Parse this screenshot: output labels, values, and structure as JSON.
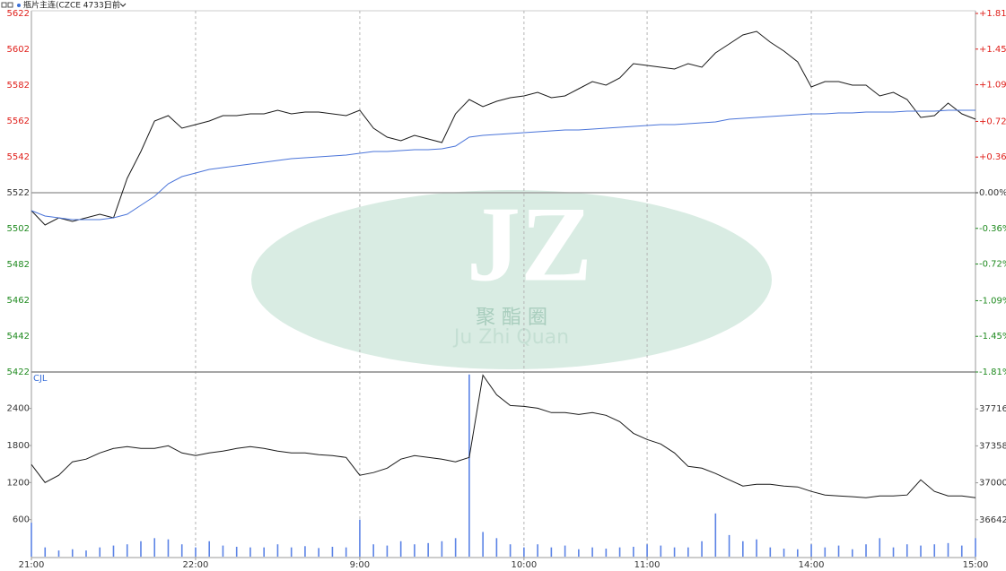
{
  "header": {
    "symbol": "瓶片主连(CZCE 4733)",
    "period": "日前"
  },
  "watermark": {
    "logo": "JZ",
    "cn": "聚 酯 圈",
    "en": "Ju Zhi Quan"
  },
  "chart_data": [
    {
      "type": "line",
      "ylim": [
        5422,
        5622
      ],
      "yticks": [
        5422,
        5442,
        5462,
        5482,
        5502,
        5522,
        5542,
        5562,
        5582,
        5602,
        5622
      ],
      "y2lim": [
        -1.81,
        1.81
      ],
      "y2ticks": [
        {
          "value": -1.81,
          "label": "-1.81%"
        },
        {
          "value": -1.45,
          "label": "-1.45%"
        },
        {
          "value": -1.09,
          "label": "-1.09%"
        },
        {
          "value": -0.72,
          "label": "-0.72%"
        },
        {
          "value": -0.36,
          "label": "-0.36%"
        },
        {
          "value": 0,
          "label": "0.00%"
        },
        {
          "value": 0.36,
          "label": "+0.36%"
        },
        {
          "value": 0.72,
          "label": "+0.72%"
        },
        {
          "value": 1.09,
          "label": "+1.09%"
        },
        {
          "value": 1.45,
          "label": "+1.45%"
        },
        {
          "value": 1.81,
          "label": "+1.81%"
        }
      ],
      "up_color": "#e0201b",
      "down_color": "#1f8a1f",
      "series": [
        {
          "color": "#1a1a1a",
          "values": [
            5512,
            5504,
            5508,
            5506,
            5508,
            5510,
            5508,
            5530,
            5545,
            5562,
            5565,
            5558,
            5560,
            5562,
            5565,
            5565,
            5566,
            5566,
            5568,
            5566,
            5567,
            5567,
            5566,
            5565,
            5568,
            5558,
            5553,
            5551,
            5554,
            5552,
            5550,
            5566,
            5574,
            5570,
            5573,
            5575,
            5576,
            5578,
            5575,
            5576,
            5580,
            5584,
            5582,
            5586,
            5594,
            5593,
            5592,
            5591,
            5594,
            5592,
            5600,
            5605,
            5610,
            5612,
            5606,
            5601,
            5595,
            5581,
            5584,
            5584,
            5582,
            5582,
            5576,
            5578,
            5574,
            5564,
            5565,
            5572,
            5566,
            5563
          ]
        },
        {
          "color": "#4a74d9",
          "values": [
            5512,
            5509,
            5508,
            5507,
            5507,
            5507,
            5508,
            5510,
            5515,
            5520,
            5527,
            5531,
            5533,
            5535,
            5536,
            5537,
            5538,
            5539,
            5540,
            5541,
            5541.5,
            5542,
            5542.5,
            5543,
            5544,
            5545,
            5545,
            5545.5,
            5546,
            5546,
            5546.5,
            5548,
            5553,
            5554,
            5554.5,
            5555,
            5555.5,
            5556,
            5556.5,
            5557,
            5557,
            5557.5,
            5558,
            5558.5,
            5559,
            5559.5,
            5560,
            5560,
            5560.5,
            5561,
            5561.5,
            5563,
            5563.5,
            5564,
            5564.5,
            5565,
            5565.5,
            5566,
            5566,
            5566.5,
            5566.5,
            5567,
            5567,
            5567,
            5567.5,
            5567.5,
            5567.5,
            5568,
            5568,
            5568
          ]
        }
      ]
    },
    {
      "type": "bar",
      "label": "CJL",
      "categories": [
        "21:00",
        null,
        null,
        null,
        null,
        null,
        null,
        null,
        null,
        null,
        null,
        null,
        "22:00",
        null,
        null,
        null,
        null,
        null,
        null,
        null,
        null,
        null,
        null,
        null,
        "9:00",
        null,
        null,
        null,
        null,
        null,
        null,
        null,
        null,
        null,
        null,
        null,
        "10:00",
        null,
        null,
        null,
        null,
        null,
        null,
        null,
        null,
        "11:00",
        null,
        null,
        null,
        null,
        null,
        null,
        null,
        null,
        null,
        null,
        null,
        "14:00",
        null,
        null,
        null,
        null,
        null,
        null,
        null,
        null,
        null,
        null,
        null,
        "15:00"
      ],
      "values": [
        550,
        150,
        100,
        120,
        100,
        150,
        180,
        200,
        250,
        300,
        280,
        200,
        150,
        250,
        180,
        160,
        150,
        150,
        200,
        150,
        170,
        140,
        160,
        150,
        600,
        200,
        180,
        250,
        200,
        220,
        250,
        300,
        2950,
        400,
        300,
        200,
        150,
        200,
        150,
        180,
        120,
        150,
        130,
        150,
        160,
        200,
        180,
        150,
        150,
        250,
        700,
        350,
        250,
        280,
        150,
        130,
        120,
        200,
        150,
        180,
        120,
        200,
        300,
        150,
        200,
        180,
        200,
        220,
        180,
        300
      ],
      "color": "#5b83e6",
      "ylim": [
        0,
        2990
      ],
      "yticks": [
        600,
        1200,
        1800,
        2400
      ],
      "y2lim": [
        36284,
        38074
      ],
      "y2ticks": [
        36642,
        37000,
        37358,
        37716
      ],
      "series": [
        {
          "color": "#1a1a1a",
          "axis": "y2",
          "values": [
            37177,
            37003,
            37073,
            37203,
            37229,
            37289,
            37333,
            37350,
            37333,
            37333,
            37359,
            37289,
            37263,
            37289,
            37307,
            37333,
            37350,
            37333,
            37307,
            37289,
            37289,
            37272,
            37263,
            37246,
            37073,
            37099,
            37142,
            37229,
            37263,
            37246,
            37229,
            37203,
            37246,
            38044,
            37853,
            37749,
            37740,
            37723,
            37680,
            37680,
            37662,
            37680,
            37654,
            37593,
            37480,
            37420,
            37376,
            37289,
            37159,
            37142,
            37090,
            37029,
            36969,
            36986,
            36986,
            36969,
            36960,
            36917,
            36882,
            36873,
            36865,
            36856,
            36873,
            36873,
            36882,
            37029,
            36917,
            36873,
            36873,
            36856
          ]
        }
      ]
    }
  ]
}
